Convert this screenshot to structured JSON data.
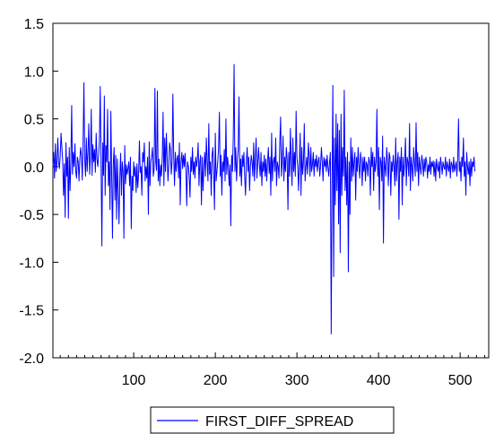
{
  "chart_data": {
    "type": "line",
    "title": "",
    "xlabel": "",
    "ylabel": "",
    "xlim": [
      1,
      535
    ],
    "ylim": [
      -2.0,
      1.5
    ],
    "x_ticks": [
      100,
      200,
      300,
      400,
      500
    ],
    "x_tick_labels": [
      "100",
      "200",
      "300",
      "400",
      "500"
    ],
    "y_ticks": [
      -2.0,
      -1.5,
      -1.0,
      -0.5,
      0.0,
      0.5,
      1.0,
      1.5
    ],
    "y_tick_labels": [
      "-2.0",
      "-1.5",
      "-1.0",
      "-0.5",
      "0.0",
      "0.5",
      "1.0",
      "1.5"
    ],
    "grid": false,
    "legend_position": "bottom-center",
    "series": [
      {
        "name": "FIRST_DIFF_SPREAD",
        "color": "#0000ff",
        "x_start": 1,
        "values": [
          0.02,
          0.15,
          -0.12,
          0.24,
          -0.05,
          0.05,
          0.3,
          0.04,
          -0.02,
          0.12,
          0.35,
          0.2,
          0.06,
          -0.3,
          0.03,
          -0.53,
          0.25,
          -0.1,
          0.1,
          -0.54,
          0.2,
          -0.25,
          0.05,
          0.64,
          -0.08,
          0.15,
          0.0,
          0.24,
          -0.05,
          -0.12,
          0.1,
          0.05,
          -0.15,
          0.08,
          0.2,
          0.12,
          -0.14,
          0.25,
          0.88,
          0.07,
          -0.1,
          0.3,
          -0.05,
          0.15,
          0.45,
          -0.08,
          0.1,
          0.6,
          -0.09,
          0.23,
          0.05,
          0.18,
          -0.06,
          0.35,
          0.08,
          0.0,
          0.12,
          0.28,
          0.84,
          0.05,
          -0.83,
          0.25,
          -0.09,
          0.74,
          -0.3,
          0.22,
          0.05,
          0.6,
          -0.2,
          0.05,
          -0.45,
          0.58,
          -0.08,
          -0.75,
          0.03,
          0.2,
          -0.35,
          0.12,
          -0.55,
          0.08,
          -0.25,
          -0.6,
          -0.1,
          0.14,
          -0.3,
          0.05,
          -0.05,
          -0.75,
          0.22,
          -0.18,
          0.02,
          -0.08,
          -0.02,
          0.05,
          -0.2,
          0.1,
          -0.65,
          -0.1,
          -0.25,
          0.05,
          -0.1,
          0.0,
          -0.27,
          0.03,
          -0.22,
          -0.08,
          0.27,
          -0.06,
          0.0,
          -0.3,
          0.15,
          0.05,
          0.25,
          -0.15,
          0.0,
          -0.12,
          0.1,
          -0.5,
          0.26,
          -0.2,
          0.05,
          0.1,
          0.2,
          -0.1,
          -0.03,
          0.82,
          0.05,
          -0.04,
          0.79,
          -0.15,
          0.08,
          -0.2,
          0.02,
          -0.1,
          0.1,
          0.57,
          -0.2,
          0.3,
          -0.05,
          0.35,
          0.1,
          -0.15,
          0.02,
          0.25,
          0.18,
          -0.08,
          0.05,
          0.76,
          0.12,
          -0.2,
          0.15,
          -0.05,
          0.08,
          0.12,
          -0.12,
          0.25,
          -0.4,
          0.05,
          0.15,
          -0.02,
          0.12,
          0.0,
          0.14,
          -0.05,
          -0.41,
          0.05,
          0.0,
          -0.1,
          -0.32,
          0.1,
          -0.05,
          0.2,
          -0.08,
          0.05,
          -0.12,
          0.1,
          0.0,
          0.08,
          0.25,
          -0.2,
          0.05,
          0.12,
          -0.4,
          0.1,
          -0.25,
          0.0,
          0.15,
          -0.1,
          0.3,
          0.05,
          -0.15,
          0.45,
          -0.08,
          0.05,
          -0.3,
          0.12,
          0.2,
          -0.05,
          -0.45,
          0.35,
          -0.15,
          -0.05,
          0.05,
          0.2,
          0.57,
          -0.1,
          0.12,
          -0.3,
          0.05,
          -0.05,
          0.18,
          -0.15,
          0.5,
          -0.08,
          0.1,
          0.0,
          -0.2,
          0.02,
          -0.62,
          0.12,
          -0.05,
          0.3,
          1.07,
          -0.05,
          0.2,
          -0.15,
          0.06,
          0.18,
          0.73,
          -0.1,
          0.08,
          -0.2,
          0.12,
          0.0,
          0.15,
          -0.1,
          -0.3,
          0.05,
          0.2,
          -0.05,
          0.1,
          -0.25,
          0.0,
          0.12,
          0.05,
          -0.1,
          0.25,
          -0.15,
          0.08,
          0.3,
          -0.12,
          0.05,
          0.2,
          0.02,
          -0.1,
          0.15,
          -0.2,
          0.05,
          -0.05,
          0.12,
          -0.1,
          0.08,
          -0.15,
          0.05,
          0.2,
          -0.07,
          0.1,
          -0.3,
          0.35,
          -0.15,
          0.05,
          0.1,
          -0.05,
          0.3,
          -0.2,
          0.05,
          0.0,
          -0.12,
          0.25,
          0.52,
          -0.1,
          0.05,
          0.32,
          -0.15,
          0.1,
          -0.05,
          0.2,
          0.08,
          -0.45,
          0.15,
          -0.1,
          0.4,
          0.05,
          -0.2,
          0.3,
          -0.05,
          0.15,
          -0.1,
          0.58,
          0.1,
          0.0,
          -0.25,
          0.05,
          0.35,
          -0.3,
          0.2,
          -0.08,
          0.05,
          0.45,
          -0.15,
          0.0,
          0.1,
          -0.08,
          0.25,
          0.12,
          -0.1,
          0.2,
          -0.05,
          0.02,
          0.15,
          -0.1,
          0.08,
          0.0,
          0.12,
          -0.05,
          0.05,
          0.1,
          -0.1,
          0.02,
          0.2,
          0.05,
          -0.15,
          0.1,
          0.0,
          0.08,
          -0.05,
          0.12,
          0.0,
          -0.1,
          0.05,
          0.15,
          -1.75,
          -0.2,
          0.85,
          -1.15,
          0.3,
          -0.4,
          0.55,
          -0.25,
          0.45,
          -0.6,
          0.38,
          -0.9,
          0.55,
          -0.3,
          0.2,
          -0.1,
          0.8,
          -0.25,
          0.1,
          -0.4,
          0.15,
          -1.1,
          0.05,
          -0.5,
          0.3,
          -0.15,
          0.2,
          -0.1,
          0.05,
          0.15,
          -0.35,
          0.1,
          -0.05,
          0.2,
          0.0,
          -0.12,
          0.15,
          0.05,
          -0.2,
          0.1,
          -0.05,
          0.1,
          -0.15,
          0.05,
          0.02,
          -0.1,
          0.1,
          0.05,
          -0.3,
          0.2,
          0.0,
          0.15,
          -0.25,
          0.1,
          -0.05,
          0.05,
          0.6,
          -0.1,
          0.2,
          -0.45,
          0.1,
          0.05,
          -0.15,
          0.32,
          -0.8,
          0.1,
          0.0,
          -0.1,
          0.2,
          0.05,
          -0.2,
          0.15,
          0.1,
          -0.3,
          0.05,
          -0.05,
          0.12,
          0.0,
          -0.2,
          0.3,
          -0.15,
          0.05,
          0.15,
          -0.55,
          0.1,
          -0.05,
          0.2,
          -0.4,
          0.1,
          -0.1,
          0.05,
          0.3,
          -0.2,
          0.1,
          0.05,
          -0.1,
          0.45,
          -0.25,
          0.1,
          0.0,
          -0.15,
          0.2,
          0.05,
          -0.1,
          0.46,
          -0.05,
          0.15,
          -0.2,
          0.1,
          0.0,
          -0.08,
          0.12,
          0.05,
          -0.1,
          0.08,
          -0.05,
          0.1,
          0.05,
          -0.12,
          0.02,
          -0.05,
          0.1,
          -0.08,
          0.05,
          0.0,
          0.06,
          -0.1,
          0.05,
          -0.15,
          0.08,
          0.0,
          -0.05,
          0.05,
          -0.12,
          0.1,
          0.02,
          -0.08,
          0.05,
          0.0,
          -0.03,
          0.1,
          -0.1,
          0.05,
          0.0,
          -0.05,
          0.08,
          -0.12,
          0.05,
          0.02,
          -0.06,
          0.1,
          -0.05,
          0.0,
          0.05,
          -0.1,
          0.08,
          0.5,
          -0.05,
          0.05,
          -0.15,
          0.1,
          0.0,
          0.3,
          -0.1,
          0.05,
          -0.3,
          0.15,
          0.0,
          -0.08,
          0.05,
          -0.2,
          0.08,
          -0.1,
          0.05,
          0.0,
          0.1,
          -0.05
        ]
      }
    ]
  }
}
